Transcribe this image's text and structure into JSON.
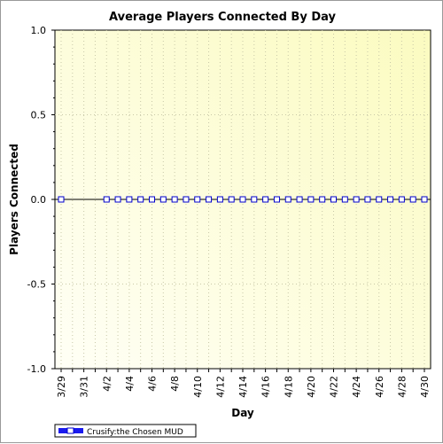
{
  "chart_data": {
    "type": "line",
    "title": "Average Players Connected By Day",
    "xlabel": "Day",
    "ylabel": "Players Connected",
    "ylim": [
      -1.0,
      1.0
    ],
    "yticks": [
      "-1.0",
      "-0.5",
      "0.0",
      "0.5",
      "1.0"
    ],
    "x": [
      "3/29",
      "3/30",
      "3/31",
      "4/1",
      "4/2",
      "4/3",
      "4/4",
      "4/5",
      "4/6",
      "4/7",
      "4/8",
      "4/9",
      "4/10",
      "4/11",
      "4/12",
      "4/13",
      "4/14",
      "4/15",
      "4/16",
      "4/17",
      "4/18",
      "4/19",
      "4/20",
      "4/21",
      "4/22",
      "4/23",
      "4/24",
      "4/25",
      "4/26",
      "4/27",
      "4/28",
      "4/29",
      "4/30"
    ],
    "xtick_labels": [
      "3/29",
      "3/31",
      "4/2",
      "4/4",
      "4/6",
      "4/8",
      "4/10",
      "4/12",
      "4/14",
      "4/16",
      "4/18",
      "4/20",
      "4/22",
      "4/24",
      "4/26",
      "4/28",
      "4/30"
    ],
    "series": [
      {
        "name": "Crusify:the Chosen MUD",
        "values": [
          0,
          null,
          null,
          null,
          0,
          0,
          0,
          0,
          0,
          0,
          0,
          0,
          0,
          0,
          0,
          0,
          0,
          0,
          0,
          0,
          0,
          0,
          0,
          0,
          0,
          0,
          0,
          0,
          0,
          0,
          0,
          0,
          0
        ]
      }
    ],
    "zero_line": true,
    "grid": true,
    "legend_position": "bottom-left",
    "colors": {
      "plot_background_light": "#fffff6",
      "plot_background_dark": "#fbfbc0",
      "series_line": "#000000",
      "marker_fill": "#ffffff",
      "marker_stroke": "#0000cc",
      "legend_swatch": "#1a1aee",
      "grid": "#c8c8a8"
    }
  }
}
